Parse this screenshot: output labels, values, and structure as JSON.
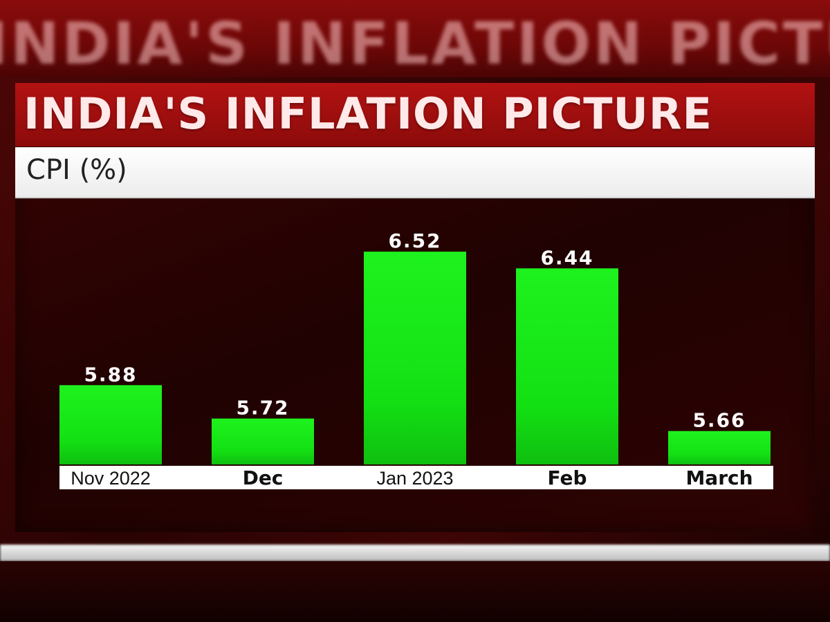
{
  "header": {
    "banner_text": "INDIA'S INFLATION PICTURE",
    "title": "INDIA'S INFLATION PICTURE",
    "subtitle": "CPI (%)"
  },
  "colors": {
    "bar": "#13e013",
    "label_strip": "#ffffff",
    "title_bar": "#a60f0f"
  },
  "chart_data": {
    "type": "bar",
    "title": "INDIA'S INFLATION PICTURE",
    "subtitle": "CPI (%)",
    "categories": [
      "Nov 2022",
      "Dec",
      "Jan 2023",
      "Feb",
      "March"
    ],
    "values": [
      5.88,
      5.72,
      6.52,
      6.44,
      5.66
    ],
    "value_labels": [
      "5.88",
      "5.72",
      "6.52",
      "6.44",
      "5.66"
    ],
    "ylim": [
      5.5,
      6.6
    ],
    "grid": false,
    "legend": "none"
  }
}
